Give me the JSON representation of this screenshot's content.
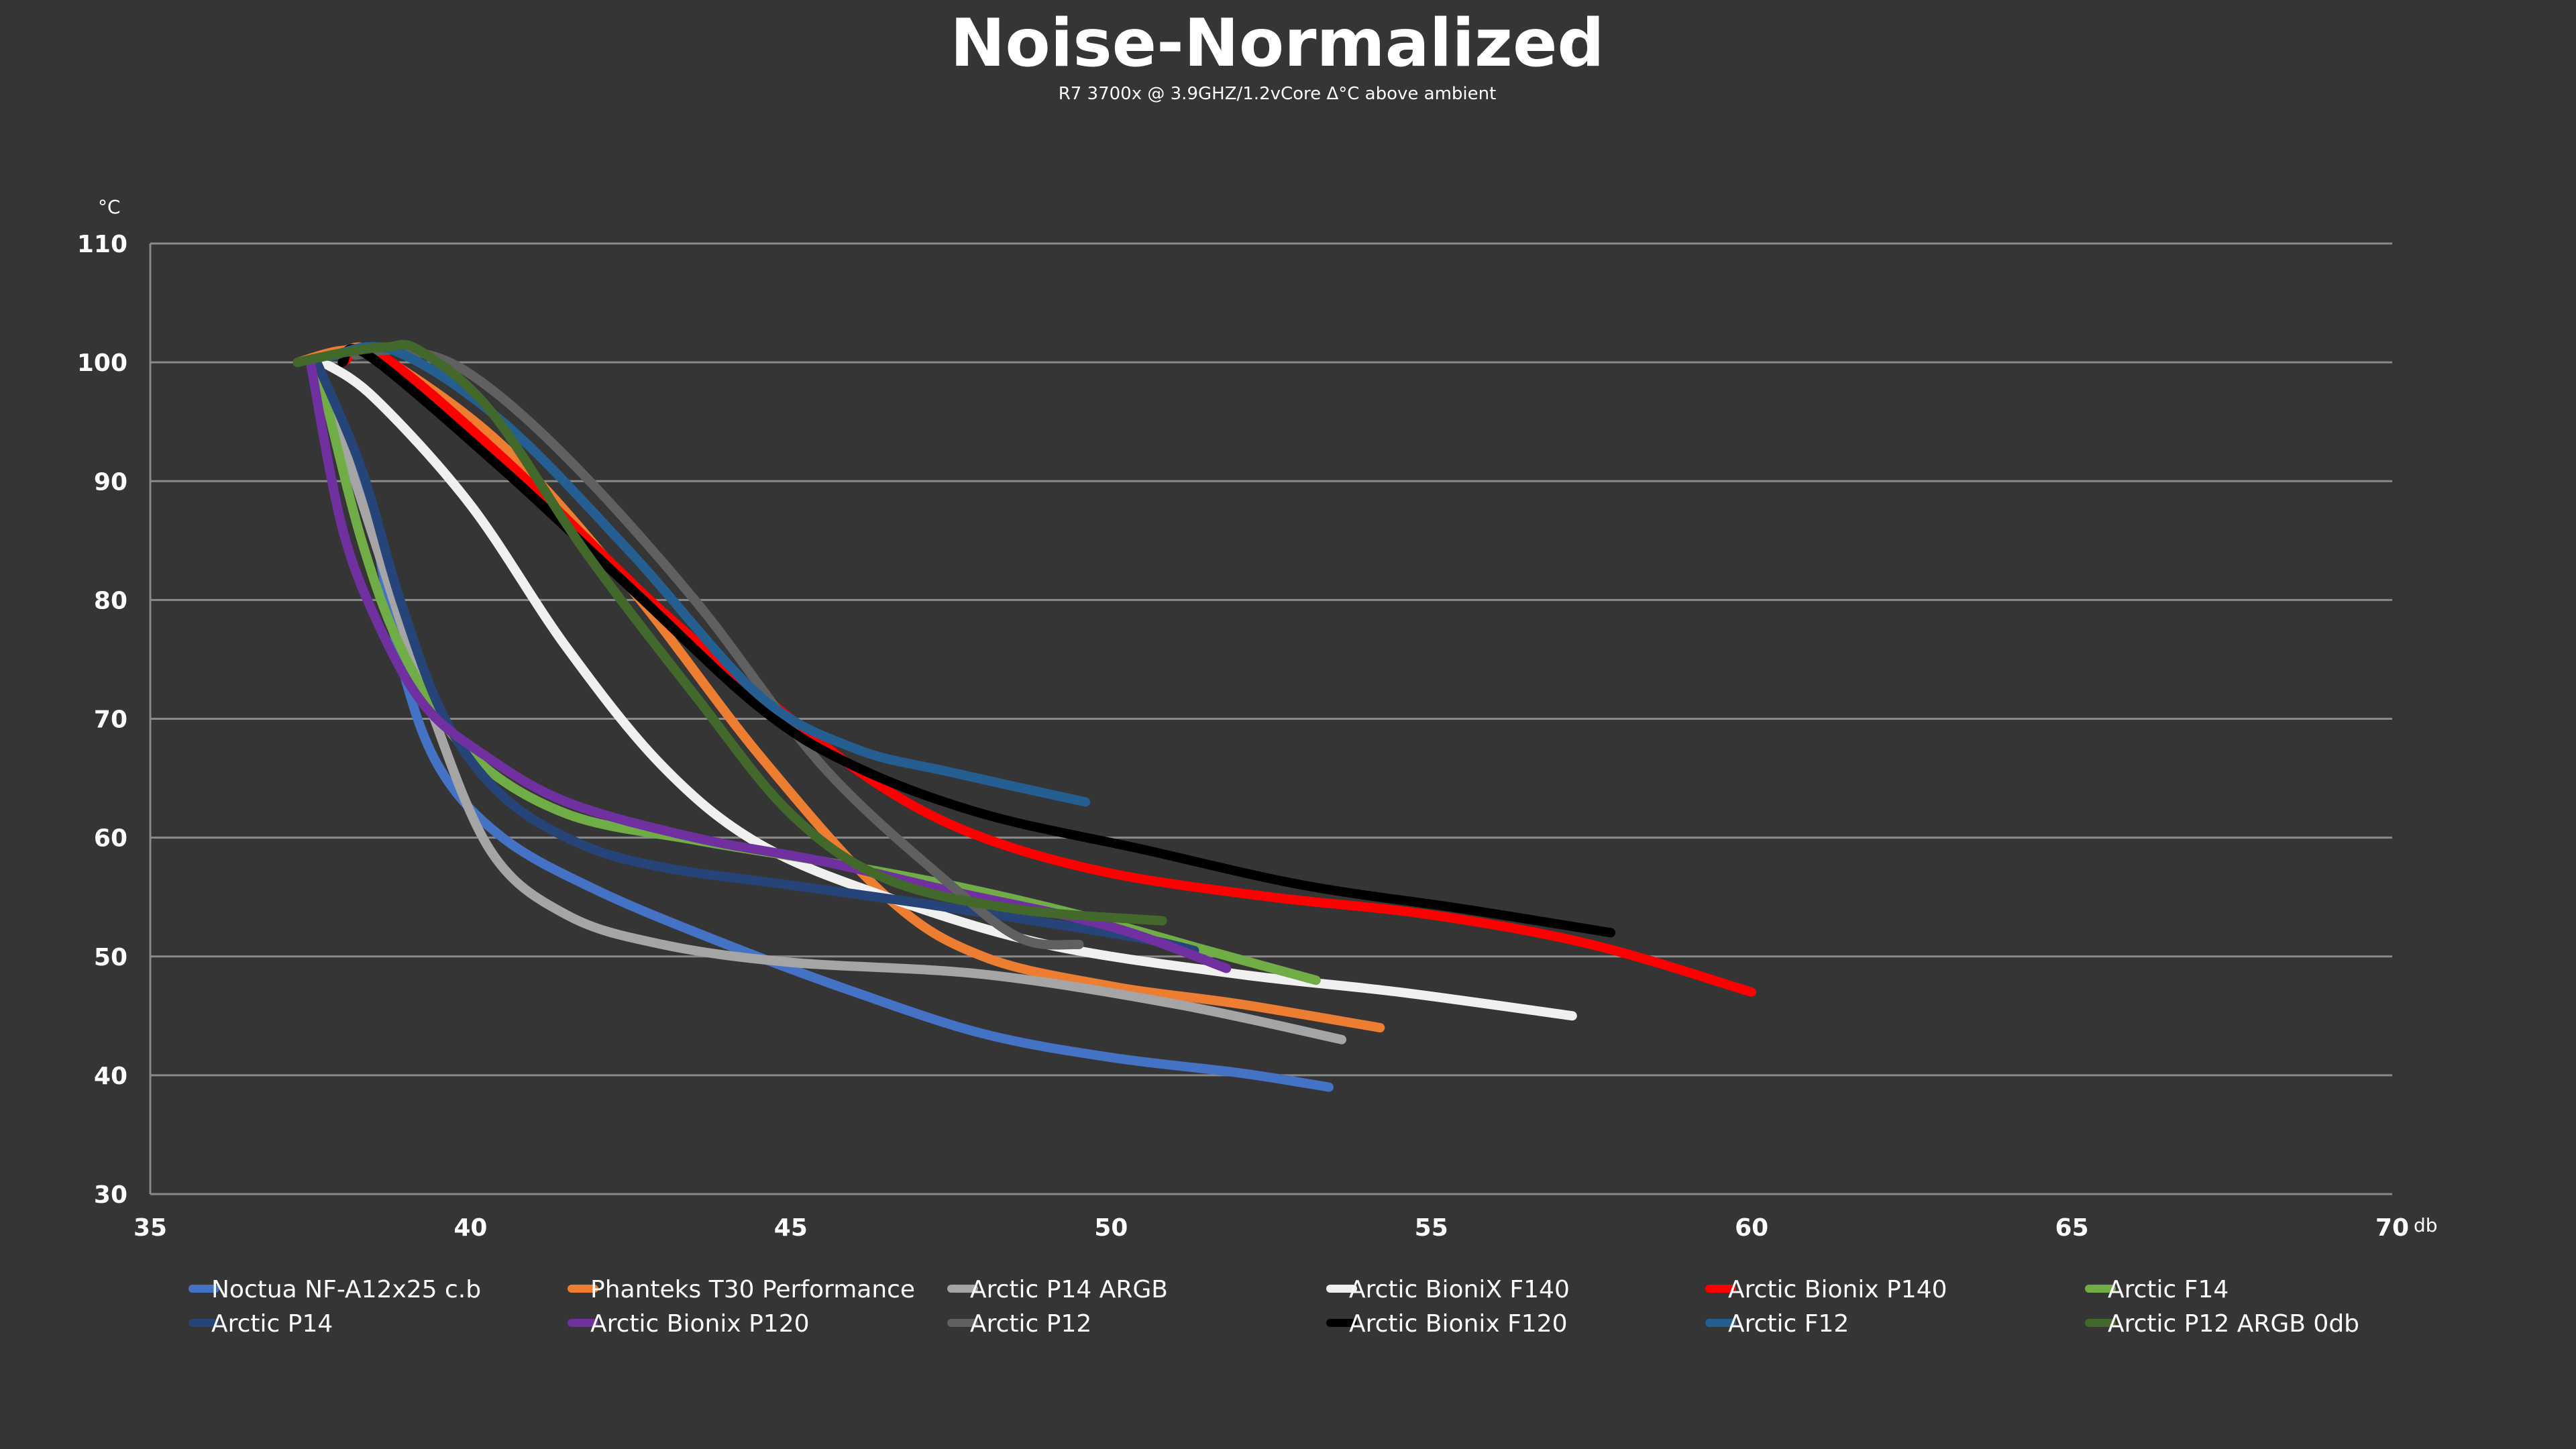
{
  "chart_data": {
    "type": "line",
    "title": "Noise-Normalized",
    "subtitle": "R7 3700x @ 3.9GHZ/1.2vCore Δ°C above ambient",
    "xlabel": "db",
    "ylabel": "°C",
    "xlim": [
      35,
      70
    ],
    "ylim": [
      30,
      110
    ],
    "xticks": [
      "35",
      "40",
      "45",
      "50",
      "55",
      "60",
      "65",
      "70"
    ],
    "yticks": [
      "30",
      "40",
      "50",
      "60",
      "70",
      "80",
      "90",
      "100",
      "110"
    ],
    "grid": true,
    "legend_position": "bottom",
    "series": [
      {
        "name": "Noctua NF-A12x25 c.b",
        "color": "#4472C4",
        "points": [
          [
            37.6,
            100
          ],
          [
            38.4,
            88
          ],
          [
            38.9,
            75
          ],
          [
            39.5,
            66
          ],
          [
            40.5,
            60
          ],
          [
            42,
            55.5
          ],
          [
            44,
            51
          ],
          [
            46,
            47
          ],
          [
            48,
            43.5
          ],
          [
            50,
            41.5
          ],
          [
            52,
            40.2
          ],
          [
            53.4,
            39
          ]
        ]
      },
      {
        "name": "Phanteks T30 Performance",
        "color": "#ED7D31",
        "points": [
          [
            37.3,
            100
          ],
          [
            38,
            101
          ],
          [
            38.6,
            100.5
          ],
          [
            40.5,
            93
          ],
          [
            42.5,
            81
          ],
          [
            44.5,
            67
          ],
          [
            46.5,
            55
          ],
          [
            48,
            50
          ],
          [
            50,
            47.5
          ],
          [
            52,
            46
          ],
          [
            54.2,
            44
          ]
        ]
      },
      {
        "name": "Arctic P14 ARGB",
        "color": "#A5A5A5",
        "points": [
          [
            37.6,
            100
          ],
          [
            38.5,
            85
          ],
          [
            39.3,
            72
          ],
          [
            40.3,
            59
          ],
          [
            41.5,
            53.5
          ],
          [
            43,
            51
          ],
          [
            45,
            49.5
          ],
          [
            48,
            48.5
          ],
          [
            51,
            46
          ],
          [
            53.6,
            43
          ]
        ]
      },
      {
        "name": "Arctic BioniX F140",
        "color": "#F0F0F0",
        "points": [
          [
            37.7,
            100
          ],
          [
            38.5,
            97
          ],
          [
            40,
            88
          ],
          [
            41.5,
            76
          ],
          [
            43,
            66
          ],
          [
            44.5,
            59.5
          ],
          [
            46.5,
            55
          ],
          [
            49,
            51
          ],
          [
            52,
            48.5
          ],
          [
            54.5,
            47
          ],
          [
            57.2,
            45
          ]
        ]
      },
      {
        "name": "Arctic Bionix P140",
        "color": "#FF0000",
        "points": [
          [
            38,
            100
          ],
          [
            38.6,
            100.6
          ],
          [
            40.5,
            92
          ],
          [
            43,
            79
          ],
          [
            45,
            70
          ],
          [
            46.5,
            64
          ],
          [
            48,
            60
          ],
          [
            50,
            57
          ],
          [
            52.5,
            55
          ],
          [
            55,
            53.5
          ],
          [
            57.5,
            51
          ],
          [
            60,
            47
          ]
        ]
      },
      {
        "name": "Arctic F14",
        "color": "#70AD47",
        "points": [
          [
            37.6,
            100
          ],
          [
            38.3,
            85
          ],
          [
            39,
            75
          ],
          [
            40,
            67
          ],
          [
            41.5,
            62
          ],
          [
            43.5,
            59.8
          ],
          [
            45.5,
            58
          ],
          [
            47.5,
            56
          ],
          [
            49.5,
            53.5
          ],
          [
            51.5,
            50.5
          ],
          [
            53.2,
            48
          ]
        ]
      },
      {
        "name": "Arctic P14",
        "color": "#264478",
        "points": [
          [
            37.6,
            100
          ],
          [
            38.3,
            91
          ],
          [
            38.9,
            80
          ],
          [
            39.6,
            70
          ],
          [
            40.5,
            63.5
          ],
          [
            41.7,
            59.5
          ],
          [
            43,
            57.5
          ],
          [
            45,
            56
          ],
          [
            47,
            54.5
          ],
          [
            48.8,
            53
          ],
          [
            50.5,
            51.5
          ],
          [
            51.3,
            50.5
          ]
        ]
      },
      {
        "name": "Arctic Bionix P120",
        "color": "#7030A0",
        "points": [
          [
            37.5,
            100
          ],
          [
            38,
            86
          ],
          [
            38.6,
            77.5
          ],
          [
            39.3,
            71
          ],
          [
            40.2,
            67
          ],
          [
            41.5,
            63
          ],
          [
            43.5,
            60
          ],
          [
            45.5,
            58
          ],
          [
            47.5,
            55.5
          ],
          [
            50,
            52.5
          ],
          [
            51.8,
            49
          ]
        ]
      },
      {
        "name": "Arctic P12",
        "color": "#606060",
        "points": [
          [
            38.2,
            100.6
          ],
          [
            39,
            101
          ],
          [
            40,
            99
          ],
          [
            41.5,
            92
          ],
          [
            43.5,
            80
          ],
          [
            45.5,
            66
          ],
          [
            47.5,
            56
          ],
          [
            48.6,
            51.5
          ],
          [
            49.5,
            51
          ]
        ]
      },
      {
        "name": "Arctic Bionix F120",
        "color": "#000000",
        "points": [
          [
            38,
            100
          ],
          [
            38.4,
            100.6
          ],
          [
            40.5,
            91
          ],
          [
            42.5,
            81
          ],
          [
            44.5,
            71
          ],
          [
            46,
            66
          ],
          [
            48,
            62
          ],
          [
            50.5,
            59
          ],
          [
            53,
            56
          ],
          [
            55.5,
            54
          ],
          [
            57.8,
            52
          ]
        ]
      },
      {
        "name": "Arctic F12",
        "color": "#255E91",
        "points": [
          [
            37.8,
            100.5
          ],
          [
            38.8,
            101
          ],
          [
            40.5,
            95
          ],
          [
            42.5,
            84
          ],
          [
            44.5,
            72
          ],
          [
            46,
            67.5
          ],
          [
            47.5,
            65.5
          ],
          [
            49.6,
            63
          ]
        ]
      },
      {
        "name": "Arctic P12 ARGB 0db",
        "color": "#43682B",
        "points": [
          [
            37.3,
            100
          ],
          [
            38,
            100.8
          ],
          [
            38.7,
            101.3
          ],
          [
            39.2,
            101
          ],
          [
            40.3,
            96
          ],
          [
            41.8,
            84
          ],
          [
            43.5,
            72
          ],
          [
            45,
            62
          ],
          [
            46.5,
            56.5
          ],
          [
            48.5,
            54
          ],
          [
            50.8,
            53
          ]
        ]
      }
    ]
  }
}
